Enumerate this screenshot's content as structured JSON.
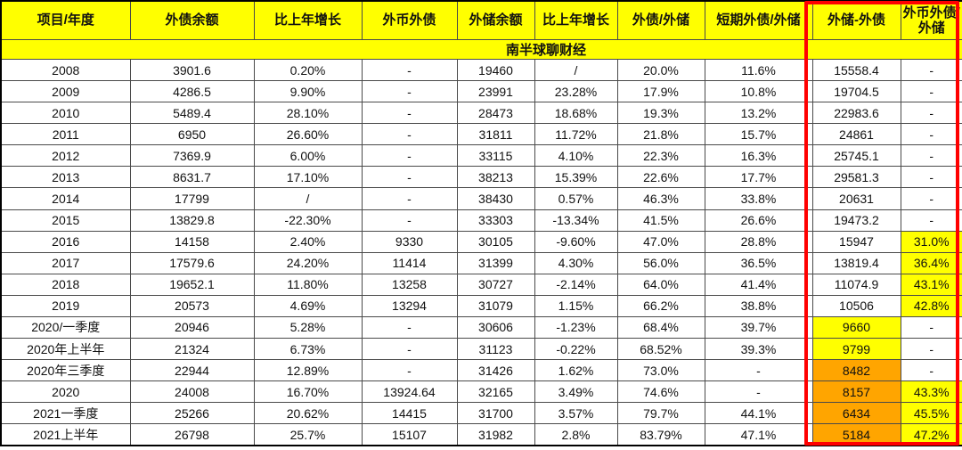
{
  "colors": {
    "header_bg": "#FFFF00",
    "highlight_yellow": "#FFFF00",
    "highlight_orange": "#FFA500",
    "annotation_box_border": "#FF0000"
  },
  "chart_data": {
    "type": "table",
    "title": "南半球聊财经",
    "columns": [
      "项目/年度",
      "外债余额",
      "比上年增长",
      "外币外债",
      "外储余额",
      "比上年增长",
      "外债/外储",
      "短期外债/外储",
      "外储-外债",
      "外币外债/外储"
    ],
    "rows": [
      {
        "cells": [
          "2008",
          "3901.6",
          "0.20%",
          "-",
          "19460",
          "/",
          "20.0%",
          "11.6%",
          "15558.4",
          "-"
        ],
        "bg9": "",
        "bg10": ""
      },
      {
        "cells": [
          "2009",
          "4286.5",
          "9.90%",
          "-",
          "23991",
          "23.28%",
          "17.9%",
          "10.8%",
          "19704.5",
          "-"
        ],
        "bg9": "",
        "bg10": ""
      },
      {
        "cells": [
          "2010",
          "5489.4",
          "28.10%",
          "-",
          "28473",
          "18.68%",
          "19.3%",
          "13.2%",
          "22983.6",
          "-"
        ],
        "bg9": "",
        "bg10": ""
      },
      {
        "cells": [
          "2011",
          "6950",
          "26.60%",
          "-",
          "31811",
          "11.72%",
          "21.8%",
          "15.7%",
          "24861",
          "-"
        ],
        "bg9": "",
        "bg10": ""
      },
      {
        "cells": [
          "2012",
          "7369.9",
          "6.00%",
          "-",
          "33115",
          "4.10%",
          "22.3%",
          "16.3%",
          "25745.1",
          "-"
        ],
        "bg9": "",
        "bg10": ""
      },
      {
        "cells": [
          "2013",
          "8631.7",
          "17.10%",
          "-",
          "38213",
          "15.39%",
          "22.6%",
          "17.7%",
          "29581.3",
          "-"
        ],
        "bg9": "",
        "bg10": ""
      },
      {
        "cells": [
          "2014",
          "17799",
          "/",
          "-",
          "38430",
          "0.57%",
          "46.3%",
          "33.8%",
          "20631",
          "-"
        ],
        "bg9": "",
        "bg10": ""
      },
      {
        "cells": [
          "2015",
          "13829.8",
          "-22.30%",
          "-",
          "33303",
          "-13.34%",
          "41.5%",
          "26.6%",
          "19473.2",
          "-"
        ],
        "bg9": "",
        "bg10": ""
      },
      {
        "cells": [
          "2016",
          "14158",
          "2.40%",
          "9330",
          "30105",
          "-9.60%",
          "47.0%",
          "28.8%",
          "15947",
          "31.0%"
        ],
        "bg9": "",
        "bg10": "yellow"
      },
      {
        "cells": [
          "2017",
          "17579.6",
          "24.20%",
          "11414",
          "31399",
          "4.30%",
          "56.0%",
          "36.5%",
          "13819.4",
          "36.4%"
        ],
        "bg9": "",
        "bg10": "yellow"
      },
      {
        "cells": [
          "2018",
          "19652.1",
          "11.80%",
          "13258",
          "30727",
          "-2.14%",
          "64.0%",
          "41.4%",
          "11074.9",
          "43.1%"
        ],
        "bg9": "",
        "bg10": "yellow"
      },
      {
        "cells": [
          "2019",
          "20573",
          "4.69%",
          "13294",
          "31079",
          "1.15%",
          "66.2%",
          "38.8%",
          "10506",
          "42.8%"
        ],
        "bg9": "",
        "bg10": "yellow"
      },
      {
        "cells": [
          "2020/一季度",
          "20946",
          "5.28%",
          "-",
          "30606",
          "-1.23%",
          "68.4%",
          "39.7%",
          "9660",
          "-"
        ],
        "bg9": "yellow",
        "bg10": ""
      },
      {
        "cells": [
          "2020年上半年",
          "21324",
          "6.73%",
          "-",
          "31123",
          "-0.22%",
          "68.52%",
          "39.3%",
          "9799",
          "-"
        ],
        "bg9": "yellow",
        "bg10": ""
      },
      {
        "cells": [
          "2020年三季度",
          "22944",
          "12.89%",
          "-",
          "31426",
          "1.62%",
          "73.0%",
          "-",
          "8482",
          "-"
        ],
        "bg9": "orange",
        "bg10": ""
      },
      {
        "cells": [
          "2020",
          "24008",
          "16.70%",
          "13924.64",
          "32165",
          "3.49%",
          "74.6%",
          "-",
          "8157",
          "43.3%"
        ],
        "bg9": "orange",
        "bg10": "yellow"
      },
      {
        "cells": [
          "2021一季度",
          "25266",
          "20.62%",
          "14415",
          "31700",
          "3.57%",
          "79.7%",
          "44.1%",
          "6434",
          "45.5%"
        ],
        "bg9": "orange",
        "bg10": "yellow"
      },
      {
        "cells": [
          "2021上半年",
          "26798",
          "25.7%",
          "15107",
          "31982",
          "2.8%",
          "83.79%",
          "47.1%",
          "5184",
          "47.2%"
        ],
        "bg9": "orange",
        "bg10": "yellow"
      }
    ]
  }
}
